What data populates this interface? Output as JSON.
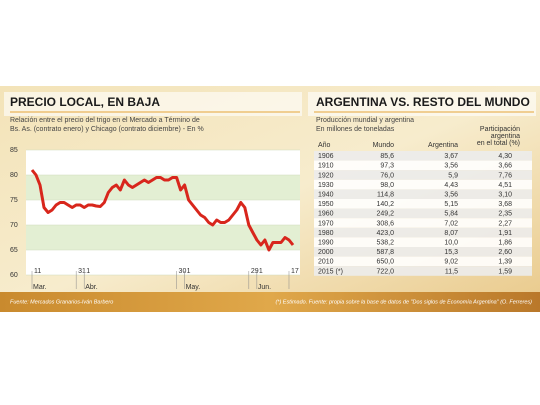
{
  "chart_data": {
    "type": "line",
    "title": "PRECIO LOCAL, EN BAJA",
    "subtitle": [
      "Relación entre el precio del trigo en el Mercado a Término de",
      "Bs. As. (contrato enero) y Chicago (contrato diciembre) - En %"
    ],
    "source": "Fuente: Mercados Granarios-Iván Barbero",
    "color": "#d8261c",
    "xlim": [
      0,
      65
    ],
    "xticks": [
      {
        "value": 0,
        "label": "11"
      },
      {
        "value": 11,
        "label": "31"
      },
      {
        "value": 13,
        "label": "1"
      },
      {
        "value": 36,
        "label": "30"
      },
      {
        "value": 38,
        "label": "1"
      },
      {
        "value": 54,
        "label": "29"
      },
      {
        "value": 56,
        "label": "1"
      },
      {
        "value": 64,
        "label": "17"
      }
    ],
    "months": [
      {
        "value": 0,
        "label": "Mar."
      },
      {
        "value": 13,
        "label": "Abr."
      },
      {
        "value": 38,
        "label": "May."
      },
      {
        "value": 56,
        "label": "Jun."
      }
    ],
    "ylim": [
      60,
      85
    ],
    "yticks": [
      60,
      65,
      70,
      75,
      80,
      85
    ],
    "grid": true,
    "values": [
      81,
      80,
      78,
      73.5,
      72.5,
      73,
      74,
      74.5,
      74.5,
      74,
      73.5,
      74,
      74,
      73.5,
      74,
      74,
      73.8,
      73.7,
      74.5,
      76.5,
      77.5,
      78,
      77,
      79,
      78,
      77.5,
      78,
      78.5,
      79,
      78.5,
      79,
      79.5,
      79.5,
      79,
      79,
      79.5,
      79.5,
      77,
      78,
      75,
      74,
      73,
      72,
      71.5,
      70.5,
      70,
      71,
      70.5,
      70.5,
      71,
      72,
      73,
      74.5,
      73.5,
      70,
      68.5,
      67,
      66,
      67,
      65,
      66.5,
      66.5,
      66.5,
      67.5,
      67,
      66
    ]
  },
  "table": {
    "title": "ARGENTINA VS. RESTO DEL MUNDO",
    "subtitle": [
      "Producción mundial y argentina",
      "En millones de toneladas"
    ],
    "headers": [
      "Año",
      "Mundo",
      "Argentina",
      [
        "Participación",
        "argentina",
        "en el total (%)"
      ]
    ],
    "rows": [
      [
        "1906",
        "85,6",
        "3,67",
        "4,30"
      ],
      [
        "1910",
        "97,3",
        "3,56",
        "3,66"
      ],
      [
        "1920",
        "76,0",
        "5,9",
        "7,76"
      ],
      [
        "1930",
        "98,0",
        "4,43",
        "4,51"
      ],
      [
        "1940",
        "114,8",
        "3,56",
        "3,10"
      ],
      [
        "1950",
        "140,2",
        "5,15",
        "3,68"
      ],
      [
        "1960",
        "249,2",
        "5,84",
        "2,35"
      ],
      [
        "1970",
        "308,6",
        "7,02",
        "2,27"
      ],
      [
        "1980",
        "423,0",
        "8,07",
        "1,91"
      ],
      [
        "1990",
        "538,2",
        "10,0",
        "1,86"
      ],
      [
        "2000",
        "587,8",
        "15,3",
        "2,60"
      ],
      [
        "2010",
        "650,0",
        "9,02",
        "1,39"
      ],
      [
        "2015 (*)",
        "722,0",
        "11,5",
        "1,59"
      ]
    ],
    "source": "(*) Estimado. Fuente: propia sobre la base de datos de \"Dos siglos de Economía Argentina\" (O. Ferreres)"
  }
}
